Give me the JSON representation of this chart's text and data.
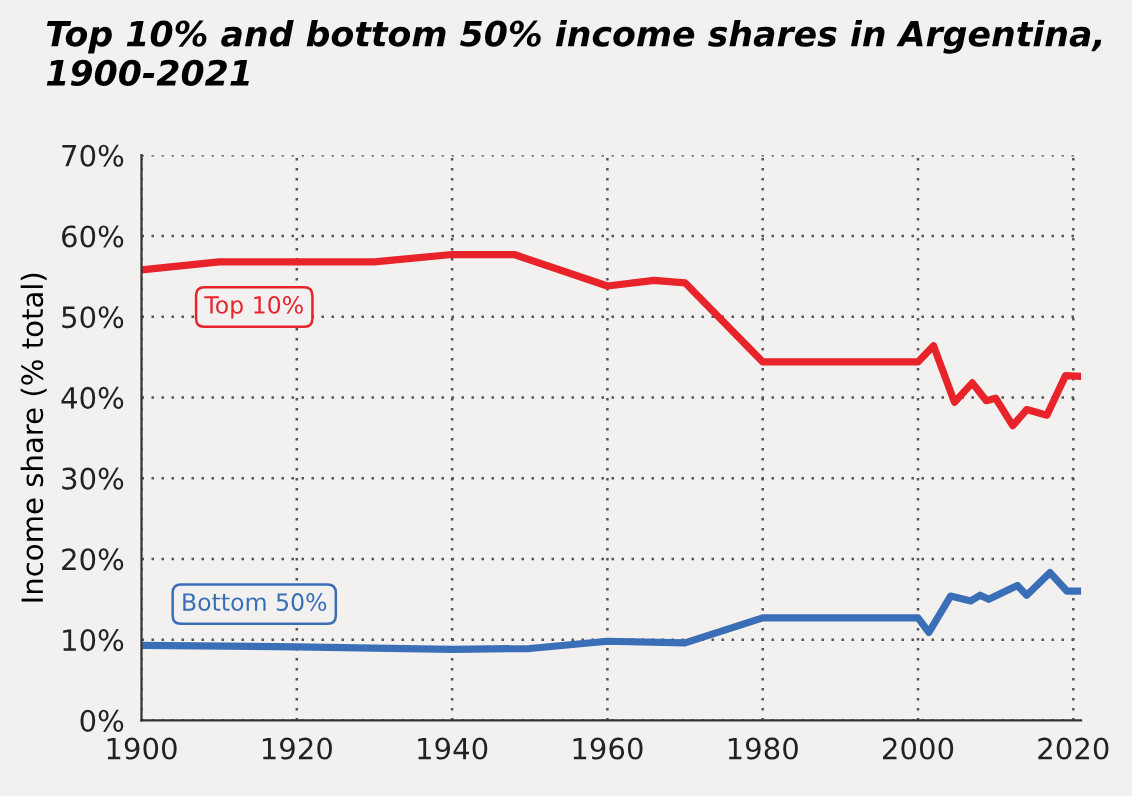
{
  "chart_data": {
    "type": "line",
    "title": "Top 10% and bottom 50% income shares in Argentina, 1900-2021",
    "ylabel": "Income share (% total)",
    "xlim": [
      1900,
      2021
    ],
    "xticks": [
      1900,
      1920,
      1940,
      1960,
      1980,
      2000,
      2020
    ],
    "ylim": [
      0,
      70
    ],
    "yticks": [
      {
        "value": 0,
        "label": "0%"
      },
      {
        "value": 10,
        "label": "10%"
      },
      {
        "value": 20,
        "label": "20%"
      },
      {
        "value": 30,
        "label": "30%"
      },
      {
        "value": 40,
        "label": "40%"
      },
      {
        "value": 50,
        "label": "50%"
      },
      {
        "value": 60,
        "label": "60%"
      },
      {
        "value": 70,
        "label": "70%"
      }
    ],
    "grid": true,
    "legend": false,
    "line_style": "solid",
    "marker": "none",
    "series": [
      {
        "name": "Top 10%",
        "color": "#e8232a",
        "x": [
          1900,
          1910,
          1920,
          1930,
          1940,
          1948,
          1960,
          1966,
          1970,
          1980,
          2000,
          2002,
          2004.7,
          2007,
          2008.8,
          2010,
          2012.2,
          2014,
          2016.6,
          2019,
          2021
        ],
        "values": [
          55.8,
          56.8,
          56.8,
          56.8,
          57.7,
          57.7,
          53.8,
          54.5,
          54.2,
          44.4,
          44.4,
          46.4,
          39.4,
          41.8,
          39.6,
          39.9,
          36.5,
          38.5,
          37.8,
          42.7,
          42.6
        ]
      },
      {
        "name": "Bottom 50%",
        "color": "#3a6fb8",
        "x": [
          1900,
          1920,
          1940,
          1950,
          1960,
          1970,
          1980,
          2000,
          2001.4,
          2004.2,
          2006.8,
          2008,
          2009.1,
          2012.8,
          2014,
          2017,
          2019.2,
          2021
        ],
        "values": [
          9.3,
          9.1,
          8.8,
          8.9,
          9.8,
          9.6,
          12.7,
          12.7,
          10.9,
          15.4,
          14.8,
          15.5,
          15.0,
          16.7,
          15.5,
          18.3,
          16.0,
          16.0
        ]
      }
    ]
  }
}
